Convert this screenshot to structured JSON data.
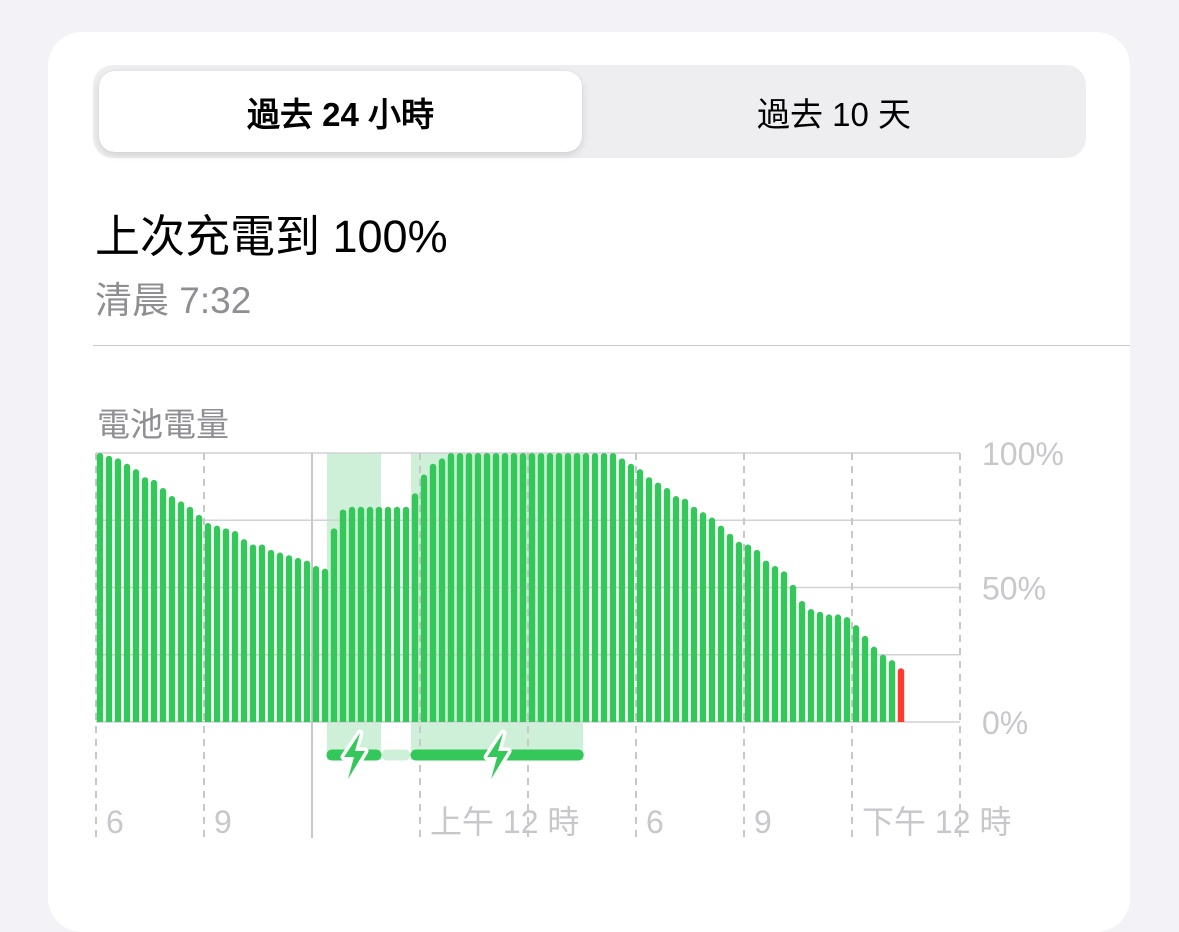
{
  "segmented": {
    "options": [
      "過去 24 小時",
      "過去 10 天"
    ],
    "selected": 0
  },
  "last_charge": {
    "title": "上次充電到 100%",
    "time": "清晨 7:32"
  },
  "chart_data": {
    "type": "bar",
    "title": "電池電量",
    "interval_minutes": 15,
    "start_time": "18:00",
    "x_tick_labels": [
      "6",
      "9",
      "",
      "上午 12 時",
      "",
      "6",
      "9",
      "下午 12 時",
      "",
      ""
    ],
    "y_tick_labels": [
      "100%",
      "50%",
      "0%"
    ],
    "ylim": [
      0,
      100
    ],
    "grid": true,
    "values": [
      100,
      99,
      98,
      96,
      94,
      91,
      90,
      87,
      84,
      82,
      80,
      77,
      74,
      73,
      72,
      71,
      68,
      66,
      66,
      64,
      63,
      62,
      61,
      60,
      58,
      57,
      72,
      79,
      80,
      80,
      80,
      80,
      80,
      80,
      80,
      85,
      92,
      96,
      98,
      100,
      100,
      100,
      100,
      100,
      100,
      100,
      100,
      100,
      100,
      100,
      100,
      100,
      100,
      100,
      100,
      100,
      100,
      100,
      98,
      96,
      94,
      91,
      89,
      87,
      84,
      83,
      80,
      78,
      76,
      73,
      70,
      67,
      66,
      64,
      60,
      58,
      56,
      51,
      45,
      42,
      41,
      40,
      40,
      39,
      36,
      32,
      28,
      25,
      23,
      20
    ],
    "low_value_index": 89,
    "charging_periods": [
      {
        "start": "00:25",
        "end": "01:55"
      },
      {
        "start": "02:45",
        "end": "07:32"
      }
    ],
    "colors": {
      "bar": "#34c759",
      "low": "#ff3b30",
      "charging_shade": "#cff0d8",
      "grid": "#d1d1d6"
    }
  }
}
